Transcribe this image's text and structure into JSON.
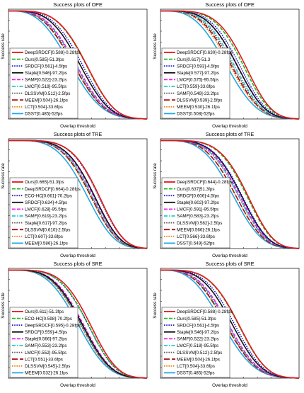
{
  "chart_data": [
    {
      "type": "line",
      "title": "Success plots of OPE",
      "xlabel": "Overlap threshold",
      "ylabel": "Success rate",
      "xlim": [
        0,
        1
      ],
      "ylim": [
        0,
        1
      ],
      "grid": false,
      "legend_position": "bottom-left",
      "series": [
        {
          "name": "DeepSRDCF[0.588]-0.28fps",
          "auc": 0.588,
          "color": "#e8141a",
          "dash": "solid"
        },
        {
          "name": "Ours[0.585]-51.3fps",
          "auc": 0.585,
          "color": "#22bb22",
          "dash": "dash"
        },
        {
          "name": "SRDCF[0.561]-4.5fps",
          "auc": 0.561,
          "color": "#1c1cc8",
          "dash": "dot"
        },
        {
          "name": "Staple[0.546]-97.2fps",
          "auc": 0.546,
          "color": "#111111",
          "dash": "solid"
        },
        {
          "name": "SAMF[0.522]-23.2fps",
          "auc": 0.522,
          "color": "#ee22ee",
          "dash": "dash"
        },
        {
          "name": "LMCF[0.518]-95.5fps",
          "auc": 0.518,
          "color": "#22cccc",
          "dash": "dashdot"
        },
        {
          "name": "DLSSVM[0.512]-2.5fps",
          "auc": 0.512,
          "color": "#555555",
          "dash": "dot"
        },
        {
          "name": "MEEM[0.504]-26.1fps",
          "auc": 0.504,
          "color": "#aa1111",
          "dash": "longdash"
        },
        {
          "name": "LCT[0.504]-33.6fps",
          "auc": 0.504,
          "color": "#e8841a",
          "dash": "dot"
        },
        {
          "name": "DSST[0.485]-52fps",
          "auc": 0.485,
          "color": "#22a8e8",
          "dash": "solid"
        }
      ]
    },
    {
      "type": "line",
      "title": "Success plots of OPE",
      "xlabel": "Overlap threshold",
      "ylabel": "Success rate",
      "xlim": [
        0,
        1
      ],
      "ylim": [
        0,
        1
      ],
      "grid": false,
      "legend_position": "bottom-left",
      "series": [
        {
          "name": "DeepSRDCF[0.630]-0.28fps",
          "auc": 0.63,
          "color": "#e8141a",
          "dash": "solid"
        },
        {
          "name": "Ours[0.617]-51.3",
          "auc": 0.617,
          "color": "#22bb22",
          "dash": "dash"
        },
        {
          "name": "SRDCF[0.593]-4.5fps",
          "auc": 0.593,
          "color": "#1c1cc8",
          "dash": "dot"
        },
        {
          "name": "Staple[0.577]-97.2fps",
          "auc": 0.577,
          "color": "#111111",
          "dash": "solid"
        },
        {
          "name": "LMCF[0.575]-95.5fps",
          "auc": 0.575,
          "color": "#ee22ee",
          "dash": "dash"
        },
        {
          "name": "LCT[0.559]-33.6fps",
          "auc": 0.559,
          "color": "#22cccc",
          "dash": "dashdot"
        },
        {
          "name": "SAMF[0.549]-23.2fps",
          "auc": 0.549,
          "color": "#555555",
          "dash": "dot"
        },
        {
          "name": "DLSSVM[0.539]-2.5fps",
          "auc": 0.539,
          "color": "#aa1111",
          "dash": "longdash"
        },
        {
          "name": "MEEM[0.530]-26.1fps",
          "auc": 0.53,
          "color": "#e8841a",
          "dash": "dot"
        },
        {
          "name": "DSST[0.508]-52fps",
          "auc": 0.508,
          "color": "#22a8e8",
          "dash": "solid"
        }
      ]
    },
    {
      "type": "line",
      "title": "Success plots of TRE",
      "xlabel": "Overlap threshold",
      "ylabel": "Success rate",
      "xlim": [
        0,
        1
      ],
      "ylim": [
        0,
        1
      ],
      "grid": false,
      "legend_position": "bottom-left",
      "series": [
        {
          "name": "Ours[0.665]-51.3fps",
          "auc": 0.665,
          "color": "#e8141a",
          "dash": "solid"
        },
        {
          "name": "DeepSRDCF[0.664]-0.28fps",
          "auc": 0.664,
          "color": "#22bb22",
          "dash": "dash"
        },
        {
          "name": "ECO-HC[0.661]-70.2fps",
          "auc": 0.661,
          "color": "#1c1cc8",
          "dash": "dot"
        },
        {
          "name": "SRDCF[0.634]-4.5fps",
          "auc": 0.634,
          "color": "#111111",
          "dash": "solid"
        },
        {
          "name": "LMCF[0.628]-95.5fps",
          "auc": 0.628,
          "color": "#ee22ee",
          "dash": "dash"
        },
        {
          "name": "SAMF[0.619]-23.2fps",
          "auc": 0.619,
          "color": "#22cccc",
          "dash": "dashdot"
        },
        {
          "name": "Staple[0.617]-97.2fps",
          "auc": 0.617,
          "color": "#555555",
          "dash": "dot"
        },
        {
          "name": "DLSSVM[0.610]-2.5fps",
          "auc": 0.61,
          "color": "#aa1111",
          "dash": "longdash"
        },
        {
          "name": "LCT[0.607]-33.6fps",
          "auc": 0.607,
          "color": "#e8841a",
          "dash": "dot"
        },
        {
          "name": "MEEM[0.586]-26.1fps",
          "auc": 0.586,
          "color": "#22a8e8",
          "dash": "solid"
        }
      ]
    },
    {
      "type": "line",
      "title": "Success plots of TRE",
      "xlabel": "Overlap threshold",
      "ylabel": "Success rate",
      "xlim": [
        0,
        1
      ],
      "ylim": [
        0,
        1
      ],
      "grid": false,
      "legend_position": "bottom-left",
      "series": [
        {
          "name": "DeepSRDCF[0.644]-0.28fps",
          "auc": 0.644,
          "color": "#e8141a",
          "dash": "solid"
        },
        {
          "name": "Ours[0.637]51.3fps",
          "auc": 0.637,
          "color": "#22bb22",
          "dash": "dash"
        },
        {
          "name": "SRDCF[0.606]-4.5fps",
          "auc": 0.606,
          "color": "#1c1cc8",
          "dash": "dot"
        },
        {
          "name": "Staple[0.602]-97.2fps",
          "auc": 0.602,
          "color": "#111111",
          "dash": "solid"
        },
        {
          "name": "LMCF[0.591]-95.5fps",
          "auc": 0.591,
          "color": "#ee22ee",
          "dash": "dash"
        },
        {
          "name": "SAMF[0.583]-23.2fps",
          "auc": 0.583,
          "color": "#22cccc",
          "dash": "dashdot"
        },
        {
          "name": "DLSSVM[0.582]-2.5fps",
          "auc": 0.582,
          "color": "#555555",
          "dash": "dot"
        },
        {
          "name": "MEEM[0.566]-26.1fps",
          "auc": 0.566,
          "color": "#aa1111",
          "dash": "longdash"
        },
        {
          "name": "LCT[0.566]-33.6fps",
          "auc": 0.566,
          "color": "#e8841a",
          "dash": "dot"
        },
        {
          "name": "DSST[0.549]-52fps",
          "auc": 0.549,
          "color": "#22a8e8",
          "dash": "solid"
        }
      ]
    },
    {
      "type": "line",
      "title": "Success plots of SRE",
      "xlabel": "Overlap threshold",
      "ylabel": "Success rate",
      "xlim": [
        0,
        1
      ],
      "ylim": [
        0,
        1
      ],
      "grid": false,
      "legend_position": "bottom-left",
      "series": [
        {
          "name": "Ours[0.611]-51.3fps",
          "auc": 0.611,
          "color": "#e8141a",
          "dash": "solid"
        },
        {
          "name": "ECO-HC[0.598]-70.2fps",
          "auc": 0.598,
          "color": "#22bb22",
          "dash": "dash"
        },
        {
          "name": "DeepSRDCF[0.595]-0.28fps",
          "auc": 0.595,
          "color": "#1c1cc8",
          "dash": "dot"
        },
        {
          "name": "SRDCF[0.559]-4.5fps",
          "auc": 0.559,
          "color": "#111111",
          "dash": "solid"
        },
        {
          "name": "Staple[0.566]-97.2fps",
          "auc": 0.566,
          "color": "#ee22ee",
          "dash": "dash"
        },
        {
          "name": "SAMF[0.553]-23.2fps",
          "auc": 0.553,
          "color": "#22cccc",
          "dash": "dashdot"
        },
        {
          "name": "LMCF[0.552]-95.5fps",
          "auc": 0.552,
          "color": "#555555",
          "dash": "dot"
        },
        {
          "name": "LCT[0.551]-33.6fps",
          "auc": 0.551,
          "color": "#aa1111",
          "dash": "longdash"
        },
        {
          "name": "DLSSVM[0.545]-2.5fps",
          "auc": 0.545,
          "color": "#e8841a",
          "dash": "dot"
        },
        {
          "name": "MEEM[0.532]-26.1fps",
          "auc": 0.532,
          "color": "#22a8e8",
          "dash": "solid"
        }
      ]
    },
    {
      "type": "line",
      "title": "Success plots of SRE",
      "xlabel": "Overlap threshold",
      "ylabel": "Success rate",
      "xlim": [
        0,
        1
      ],
      "ylim": [
        0,
        1
      ],
      "grid": false,
      "legend_position": "bottom-left",
      "series": [
        {
          "name": "DeepSRDCF[0.588]-0.28fps",
          "auc": 0.588,
          "color": "#e8141a",
          "dash": "solid"
        },
        {
          "name": "Ours[0.585]-51.3fps",
          "auc": 0.585,
          "color": "#22bb22",
          "dash": "dash"
        },
        {
          "name": "SRDCF[0.561]-4.5fps",
          "auc": 0.561,
          "color": "#1c1cc8",
          "dash": "dot"
        },
        {
          "name": "Staple[0.546]-97.2fps",
          "auc": 0.546,
          "color": "#111111",
          "dash": "solid"
        },
        {
          "name": "SAMF[0.522]-23.2fps",
          "auc": 0.522,
          "color": "#ee22ee",
          "dash": "dash"
        },
        {
          "name": "LMCF[0.518]-95.5fps",
          "auc": 0.518,
          "color": "#22cccc",
          "dash": "dashdot"
        },
        {
          "name": "DLSSVM[0.512]-2.5fps",
          "auc": 0.512,
          "color": "#555555",
          "dash": "dot"
        },
        {
          "name": "MEEM[0.504]-26.1fps",
          "auc": 0.504,
          "color": "#aa1111",
          "dash": "longdash"
        },
        {
          "name": "LCT[0.504]-33.6fps",
          "auc": 0.504,
          "color": "#e8841a",
          "dash": "dot"
        },
        {
          "name": "DSST[0.485]-52fps",
          "auc": 0.485,
          "color": "#22a8e8",
          "dash": "solid"
        }
      ]
    }
  ]
}
